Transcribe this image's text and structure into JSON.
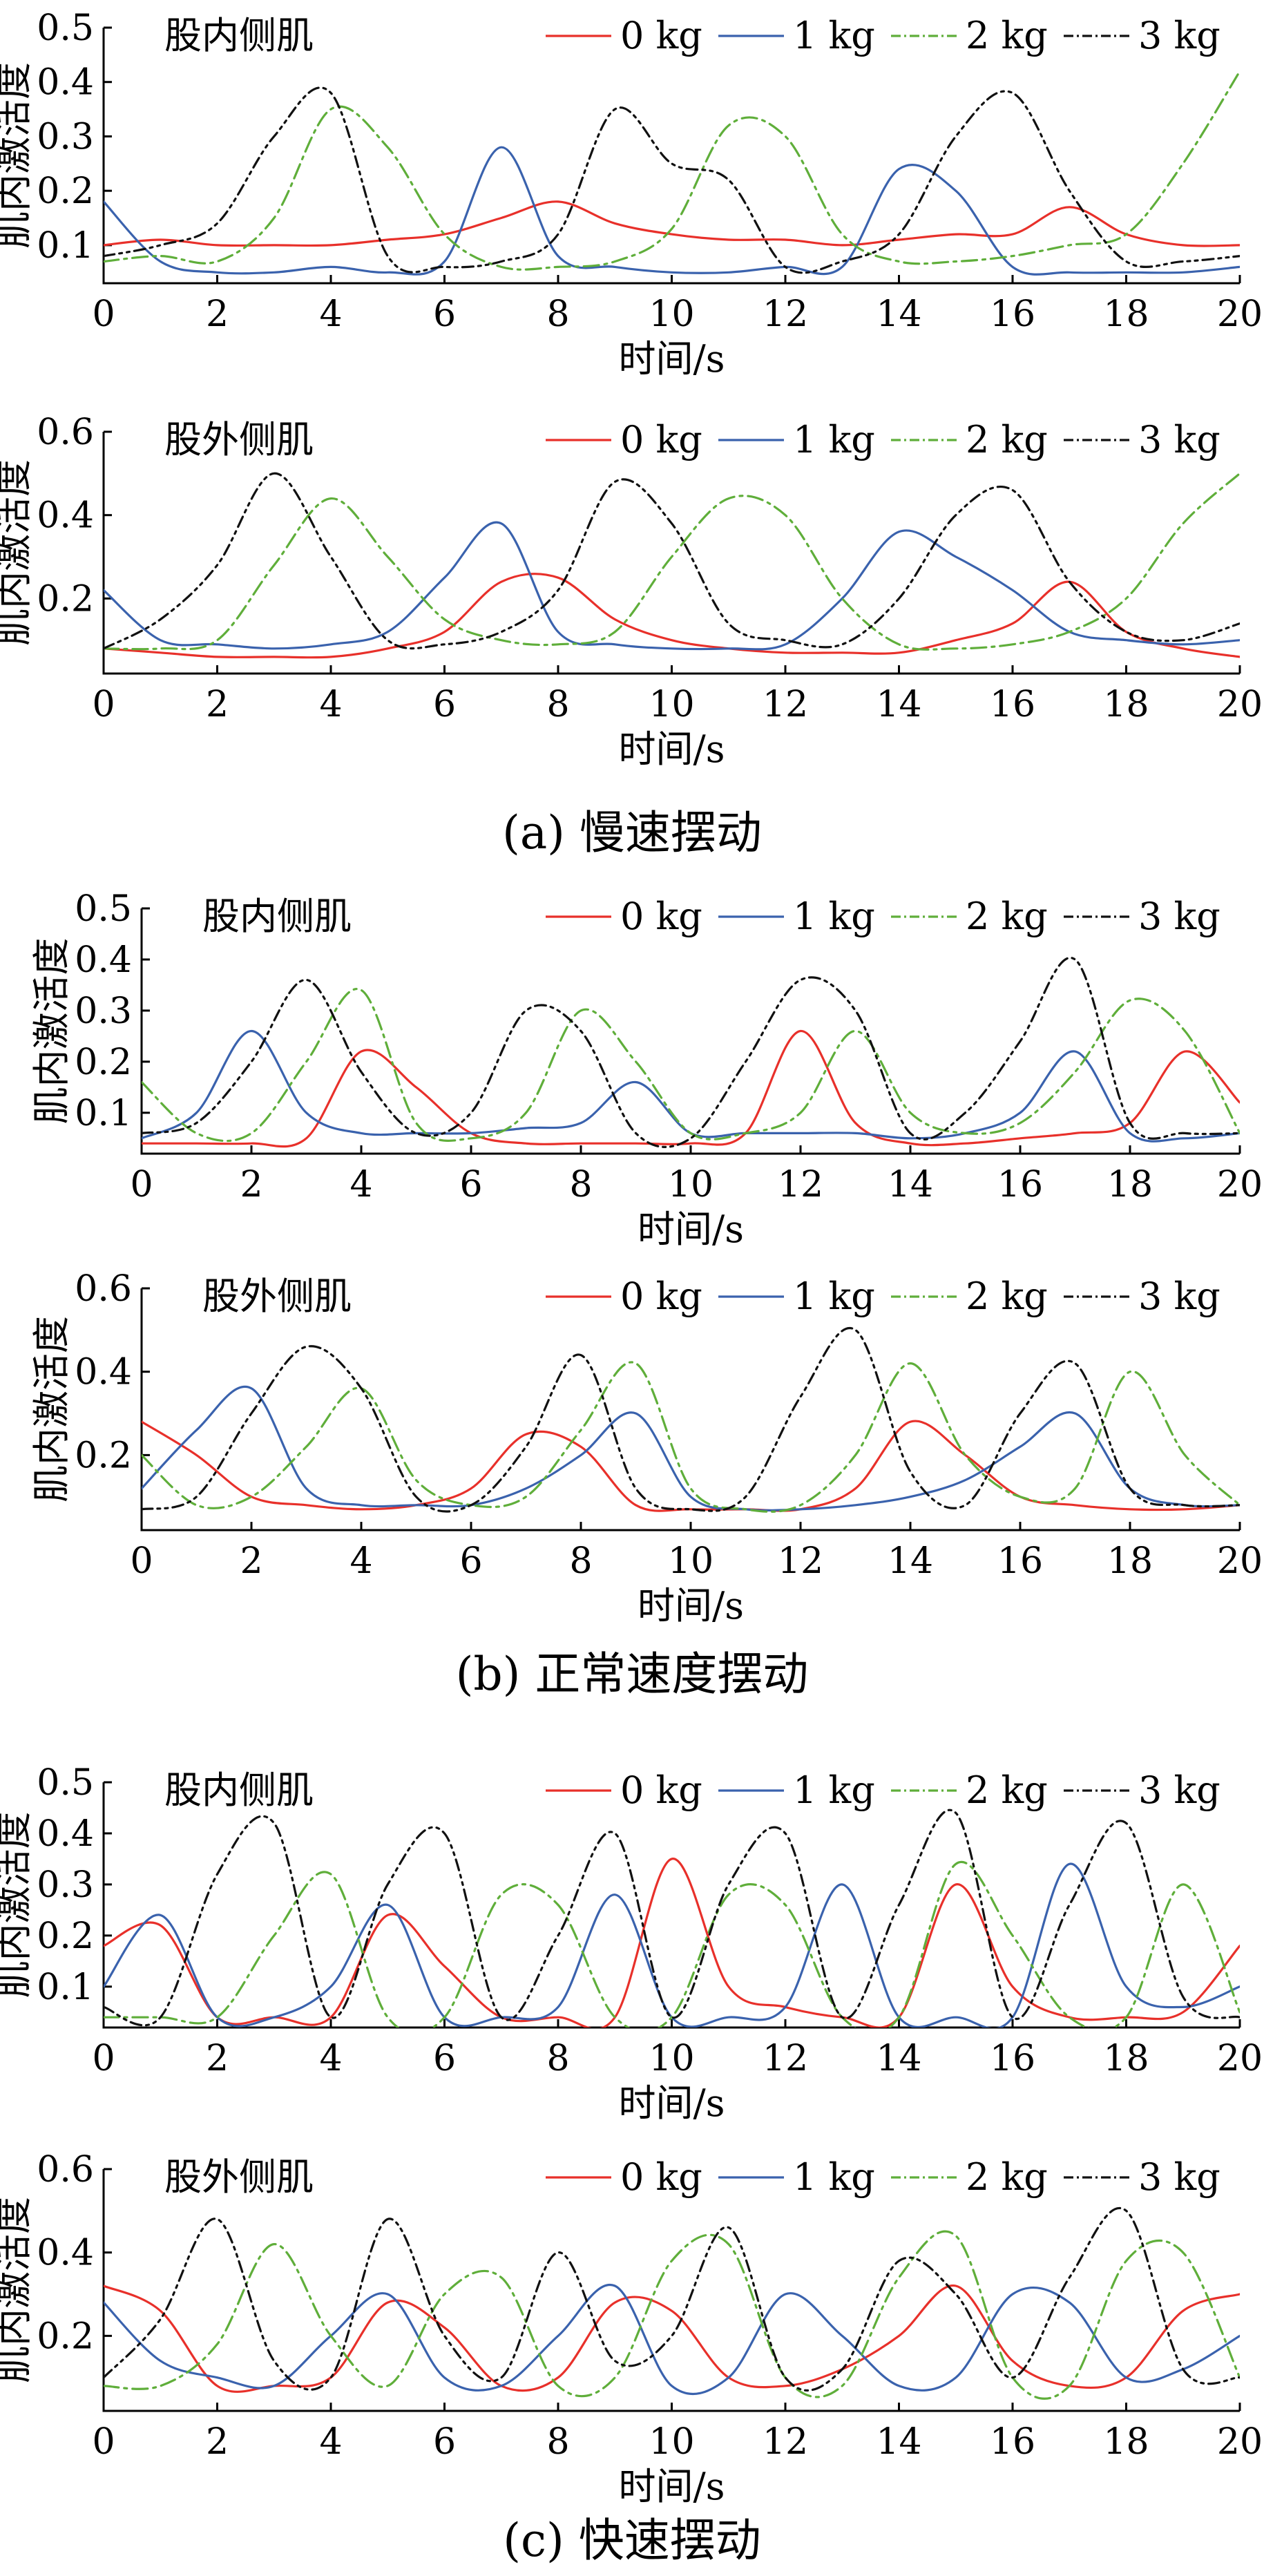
{
  "figure": {
    "captions": [
      "(a)  慢速摆动",
      "(b)  正常速度摆动",
      "(c)  快速摆动"
    ]
  },
  "legend_labels": [
    "0 kg",
    "1 kg",
    "2 kg",
    "3 kg"
  ],
  "colors": {
    "0 kg": "#e8302a",
    "1 kg": "#3a62ad",
    "2 kg": "#5fae3a",
    "3 kg": "#111111"
  },
  "chart_data": [
    {
      "type": "line",
      "panel": "(a)",
      "title": "股内侧肌",
      "xlabel": "时间/s",
      "ylabel": "肌内激活度",
      "xlim": [
        0,
        20
      ],
      "ylim": [
        0.03,
        0.5
      ],
      "xticks": [
        0,
        2,
        4,
        6,
        8,
        10,
        12,
        14,
        16,
        18,
        20
      ],
      "yticks": [
        0.1,
        0.2,
        0.3,
        0.4,
        0.5
      ],
      "x": [
        0,
        1,
        2,
        3,
        4,
        5,
        6,
        7,
        8,
        9,
        10,
        11,
        12,
        13,
        14,
        15,
        16,
        17,
        18,
        19,
        20
      ],
      "series": [
        {
          "name": "0 kg",
          "values": [
            0.1,
            0.11,
            0.1,
            0.1,
            0.1,
            0.11,
            0.12,
            0.15,
            0.18,
            0.14,
            0.12,
            0.11,
            0.11,
            0.1,
            0.11,
            0.12,
            0.12,
            0.17,
            0.12,
            0.1,
            0.1
          ]
        },
        {
          "name": "1 kg",
          "values": [
            0.18,
            0.07,
            0.05,
            0.05,
            0.06,
            0.05,
            0.07,
            0.28,
            0.08,
            0.06,
            0.05,
            0.05,
            0.06,
            0.06,
            0.24,
            0.2,
            0.06,
            0.05,
            0.05,
            0.05,
            0.06
          ]
        },
        {
          "name": "2 kg",
          "values": [
            0.07,
            0.08,
            0.07,
            0.15,
            0.35,
            0.28,
            0.12,
            0.06,
            0.06,
            0.07,
            0.13,
            0.32,
            0.3,
            0.12,
            0.07,
            0.07,
            0.08,
            0.1,
            0.12,
            0.25,
            0.42
          ]
        },
        {
          "name": "3 kg",
          "values": [
            0.08,
            0.1,
            0.14,
            0.3,
            0.38,
            0.08,
            0.06,
            0.07,
            0.12,
            0.35,
            0.25,
            0.22,
            0.06,
            0.07,
            0.12,
            0.3,
            0.38,
            0.2,
            0.07,
            0.07,
            0.08
          ]
        }
      ]
    },
    {
      "type": "line",
      "panel": "(a)",
      "title": "股外侧肌",
      "xlabel": "时间/s",
      "ylabel": "肌内激活度",
      "xlim": [
        0,
        20
      ],
      "ylim": [
        0.02,
        0.6
      ],
      "xticks": [
        0,
        2,
        4,
        6,
        8,
        10,
        12,
        14,
        16,
        18,
        20
      ],
      "yticks": [
        0.2,
        0.4,
        0.6
      ],
      "x": [
        0,
        1,
        2,
        3,
        4,
        5,
        6,
        7,
        8,
        9,
        10,
        11,
        12,
        13,
        14,
        15,
        16,
        17,
        18,
        19,
        20
      ],
      "series": [
        {
          "name": "0 kg",
          "values": [
            0.08,
            0.07,
            0.06,
            0.06,
            0.06,
            0.08,
            0.12,
            0.24,
            0.25,
            0.15,
            0.1,
            0.08,
            0.07,
            0.07,
            0.07,
            0.1,
            0.14,
            0.24,
            0.12,
            0.08,
            0.06
          ]
        },
        {
          "name": "1 kg",
          "values": [
            0.22,
            0.1,
            0.09,
            0.08,
            0.09,
            0.12,
            0.25,
            0.38,
            0.12,
            0.09,
            0.08,
            0.08,
            0.09,
            0.2,
            0.36,
            0.3,
            0.22,
            0.12,
            0.1,
            0.09,
            0.1
          ]
        },
        {
          "name": "2 kg",
          "values": [
            0.08,
            0.08,
            0.1,
            0.28,
            0.44,
            0.3,
            0.15,
            0.1,
            0.09,
            0.12,
            0.3,
            0.44,
            0.4,
            0.2,
            0.09,
            0.08,
            0.09,
            0.12,
            0.2,
            0.38,
            0.5
          ]
        },
        {
          "name": "3 kg",
          "values": [
            0.08,
            0.15,
            0.28,
            0.5,
            0.3,
            0.1,
            0.09,
            0.12,
            0.22,
            0.48,
            0.38,
            0.14,
            0.1,
            0.09,
            0.2,
            0.4,
            0.46,
            0.24,
            0.12,
            0.1,
            0.14
          ]
        }
      ]
    },
    {
      "type": "line",
      "panel": "(b)",
      "title": "股内侧肌",
      "xlabel": "时间/s",
      "ylabel": "肌内激活度",
      "xlim": [
        0,
        20
      ],
      "ylim": [
        0.02,
        0.5
      ],
      "xticks": [
        0,
        2,
        4,
        6,
        8,
        10,
        12,
        14,
        16,
        18,
        20
      ],
      "yticks": [
        0.1,
        0.2,
        0.3,
        0.4,
        0.5
      ],
      "x": [
        0,
        1,
        2,
        3,
        4,
        5,
        6,
        7,
        8,
        9,
        10,
        11,
        12,
        13,
        14,
        15,
        16,
        17,
        18,
        19,
        20
      ],
      "series": [
        {
          "name": "0 kg",
          "values": [
            0.04,
            0.04,
            0.04,
            0.05,
            0.22,
            0.15,
            0.06,
            0.04,
            0.04,
            0.04,
            0.04,
            0.06,
            0.26,
            0.08,
            0.04,
            0.04,
            0.05,
            0.06,
            0.08,
            0.22,
            0.12
          ]
        },
        {
          "name": "1 kg",
          "values": [
            0.05,
            0.1,
            0.26,
            0.1,
            0.06,
            0.06,
            0.06,
            0.07,
            0.08,
            0.16,
            0.06,
            0.06,
            0.06,
            0.06,
            0.05,
            0.06,
            0.1,
            0.22,
            0.06,
            0.05,
            0.06
          ]
        },
        {
          "name": "2 kg",
          "values": [
            0.16,
            0.06,
            0.06,
            0.2,
            0.34,
            0.08,
            0.05,
            0.1,
            0.3,
            0.2,
            0.06,
            0.06,
            0.1,
            0.26,
            0.1,
            0.06,
            0.08,
            0.18,
            0.32,
            0.26,
            0.06
          ]
        },
        {
          "name": "3 kg",
          "values": [
            0.06,
            0.08,
            0.2,
            0.36,
            0.18,
            0.06,
            0.1,
            0.3,
            0.26,
            0.06,
            0.05,
            0.2,
            0.36,
            0.3,
            0.06,
            0.1,
            0.24,
            0.4,
            0.08,
            0.06,
            0.06
          ]
        }
      ]
    },
    {
      "type": "line",
      "panel": "(b)",
      "title": "股外侧肌",
      "xlabel": "时间/s",
      "ylabel": "肌内激活度",
      "xlim": [
        0,
        20
      ],
      "ylim": [
        0.02,
        0.6
      ],
      "xticks": [
        0,
        2,
        4,
        6,
        8,
        10,
        12,
        14,
        16,
        18,
        20
      ],
      "yticks": [
        0.2,
        0.4,
        0.6
      ],
      "x": [
        0,
        1,
        2,
        3,
        4,
        5,
        6,
        7,
        8,
        9,
        10,
        11,
        12,
        13,
        14,
        15,
        16,
        17,
        18,
        19,
        20
      ],
      "series": [
        {
          "name": "0 kg",
          "values": [
            0.28,
            0.2,
            0.1,
            0.08,
            0.07,
            0.08,
            0.12,
            0.25,
            0.22,
            0.08,
            0.07,
            0.07,
            0.07,
            0.12,
            0.28,
            0.2,
            0.1,
            0.08,
            0.07,
            0.07,
            0.08
          ]
        },
        {
          "name": "1 kg",
          "values": [
            0.12,
            0.26,
            0.36,
            0.12,
            0.08,
            0.08,
            0.08,
            0.12,
            0.2,
            0.3,
            0.1,
            0.07,
            0.07,
            0.08,
            0.1,
            0.14,
            0.22,
            0.3,
            0.12,
            0.08,
            0.08
          ]
        },
        {
          "name": "2 kg",
          "values": [
            0.2,
            0.08,
            0.1,
            0.22,
            0.36,
            0.14,
            0.08,
            0.1,
            0.26,
            0.42,
            0.12,
            0.07,
            0.08,
            0.2,
            0.42,
            0.2,
            0.1,
            0.12,
            0.4,
            0.2,
            0.08
          ]
        },
        {
          "name": "3 kg",
          "values": [
            0.07,
            0.1,
            0.3,
            0.46,
            0.36,
            0.1,
            0.08,
            0.22,
            0.44,
            0.12,
            0.07,
            0.1,
            0.34,
            0.5,
            0.16,
            0.08,
            0.3,
            0.42,
            0.12,
            0.08,
            0.08
          ]
        }
      ]
    },
    {
      "type": "line",
      "panel": "(c)",
      "title": "股内侧肌",
      "xlabel": "时间/s",
      "ylabel": "肌内激活度",
      "xlim": [
        0,
        20
      ],
      "ylim": [
        0.02,
        0.5
      ],
      "xticks": [
        0,
        2,
        4,
        6,
        8,
        10,
        12,
        14,
        16,
        18,
        20
      ],
      "yticks": [
        0.1,
        0.2,
        0.3,
        0.4,
        0.5
      ],
      "x": [
        0,
        1,
        2,
        3,
        4,
        5,
        6,
        7,
        8,
        9,
        10,
        11,
        12,
        13,
        14,
        15,
        16,
        17,
        18,
        19,
        20
      ],
      "series": [
        {
          "name": "0 kg",
          "values": [
            0.18,
            0.22,
            0.04,
            0.04,
            0.04,
            0.24,
            0.14,
            0.04,
            0.04,
            0.04,
            0.35,
            0.1,
            0.06,
            0.04,
            0.04,
            0.3,
            0.1,
            0.04,
            0.04,
            0.05,
            0.18
          ]
        },
        {
          "name": "1 kg",
          "values": [
            0.1,
            0.24,
            0.04,
            0.04,
            0.1,
            0.26,
            0.04,
            0.04,
            0.06,
            0.28,
            0.04,
            0.04,
            0.06,
            0.3,
            0.04,
            0.04,
            0.04,
            0.34,
            0.1,
            0.06,
            0.1
          ]
        },
        {
          "name": "2 kg",
          "values": [
            0.04,
            0.04,
            0.04,
            0.2,
            0.32,
            0.04,
            0.04,
            0.28,
            0.26,
            0.04,
            0.04,
            0.28,
            0.26,
            0.04,
            0.04,
            0.34,
            0.2,
            0.04,
            0.04,
            0.3,
            0.05
          ]
        },
        {
          "name": "3 kg",
          "values": [
            0.06,
            0.04,
            0.32,
            0.42,
            0.04,
            0.3,
            0.4,
            0.04,
            0.2,
            0.4,
            0.04,
            0.3,
            0.4,
            0.04,
            0.26,
            0.44,
            0.04,
            0.26,
            0.42,
            0.08,
            0.04
          ]
        }
      ]
    },
    {
      "type": "line",
      "panel": "(c)",
      "title": "股外侧肌",
      "xlabel": "时间/s",
      "ylabel": "肌内激活度",
      "xlim": [
        0,
        20
      ],
      "ylim": [
        0.02,
        0.6
      ],
      "xticks": [
        0,
        2,
        4,
        6,
        8,
        10,
        12,
        14,
        16,
        18,
        20
      ],
      "yticks": [
        0.2,
        0.4,
        0.6
      ],
      "x": [
        0,
        1,
        2,
        3,
        4,
        5,
        6,
        7,
        8,
        9,
        10,
        11,
        12,
        13,
        14,
        15,
        16,
        17,
        18,
        19,
        20
      ],
      "series": [
        {
          "name": "0 kg",
          "values": [
            0.32,
            0.26,
            0.08,
            0.08,
            0.1,
            0.28,
            0.22,
            0.08,
            0.1,
            0.28,
            0.26,
            0.1,
            0.08,
            0.12,
            0.2,
            0.32,
            0.14,
            0.08,
            0.1,
            0.26,
            0.3
          ]
        },
        {
          "name": "1 kg",
          "values": [
            0.28,
            0.14,
            0.1,
            0.08,
            0.2,
            0.3,
            0.1,
            0.08,
            0.2,
            0.32,
            0.08,
            0.1,
            0.3,
            0.2,
            0.08,
            0.1,
            0.3,
            0.28,
            0.1,
            0.12,
            0.2
          ]
        },
        {
          "name": "2 kg",
          "values": [
            0.08,
            0.08,
            0.18,
            0.42,
            0.2,
            0.08,
            0.3,
            0.34,
            0.08,
            0.1,
            0.38,
            0.42,
            0.1,
            0.08,
            0.34,
            0.44,
            0.1,
            0.08,
            0.38,
            0.4,
            0.1
          ]
        },
        {
          "name": "3 kg",
          "values": [
            0.1,
            0.24,
            0.48,
            0.14,
            0.1,
            0.48,
            0.2,
            0.1,
            0.4,
            0.14,
            0.2,
            0.46,
            0.1,
            0.12,
            0.38,
            0.3,
            0.1,
            0.34,
            0.5,
            0.12,
            0.1
          ]
        }
      ]
    }
  ]
}
